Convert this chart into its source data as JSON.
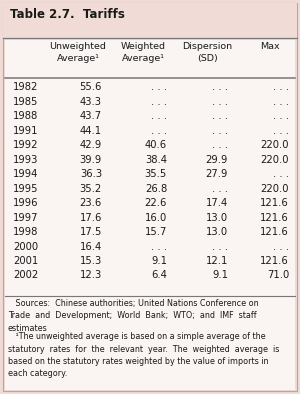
{
  "title": "Table 2.7.  Tariffs",
  "bg_color": "#f0dbd6",
  "inner_bg": "#faf4f2",
  "title_color": "#1a1a1a",
  "header_labels": [
    "Unweighted\nAverage¹",
    "Weighted\nAverage¹",
    "Dispersion\n(SD)",
    "Max"
  ],
  "rows": [
    [
      "1982",
      "55.6",
      ". . .",
      ". . .",
      ". . ."
    ],
    [
      "1985",
      "43.3",
      ". . .",
      ". . .",
      ". . ."
    ],
    [
      "1988",
      "43.7",
      ". . .",
      ". . .",
      ". . ."
    ],
    [
      "1991",
      "44.1",
      ". . .",
      ". . .",
      ". . ."
    ],
    [
      "1992",
      "42.9",
      "40.6",
      ". . .",
      "220.0"
    ],
    [
      "1993",
      "39.9",
      "38.4",
      "29.9",
      "220.0"
    ],
    [
      "1994",
      "36.3",
      "35.5",
      "27.9",
      ". . ."
    ],
    [
      "1995",
      "35.2",
      "26.8",
      ". . .",
      "220.0"
    ],
    [
      "1996",
      "23.6",
      "22.6",
      "17.4",
      "121.6"
    ],
    [
      "1997",
      "17.6",
      "16.0",
      "13.0",
      "121.6"
    ],
    [
      "1998",
      "17.5",
      "15.7",
      "13.0",
      "121.6"
    ],
    [
      "2000",
      "16.4",
      ". . .",
      ". . .",
      ". . ."
    ],
    [
      "2001",
      "15.3",
      "9.1",
      "12.1",
      "121.6"
    ],
    [
      "2002",
      "12.3",
      "6.4",
      "9.1",
      "71.0"
    ]
  ],
  "sources_text": "   Sources:  Chinese authorities; United Nations Conference on\nTrade  and  Development;  World  Bank;  WTO;  and  IMF  staff\nestimates",
  "footnote_text": "   ¹The unweighted average is based on a simple average of the\nstatutory  rates  for  the  relevant  year.  The  weighted  average  is\nbased on the statutory rates weighted by the value of imports in\neach category.",
  "data_color": "#1a1a1a",
  "header_color": "#1a1a1a",
  "line_color": "#777777",
  "font_size_title": 8.5,
  "font_size_header": 6.8,
  "font_size_data": 7.2,
  "font_size_footnote": 5.8
}
